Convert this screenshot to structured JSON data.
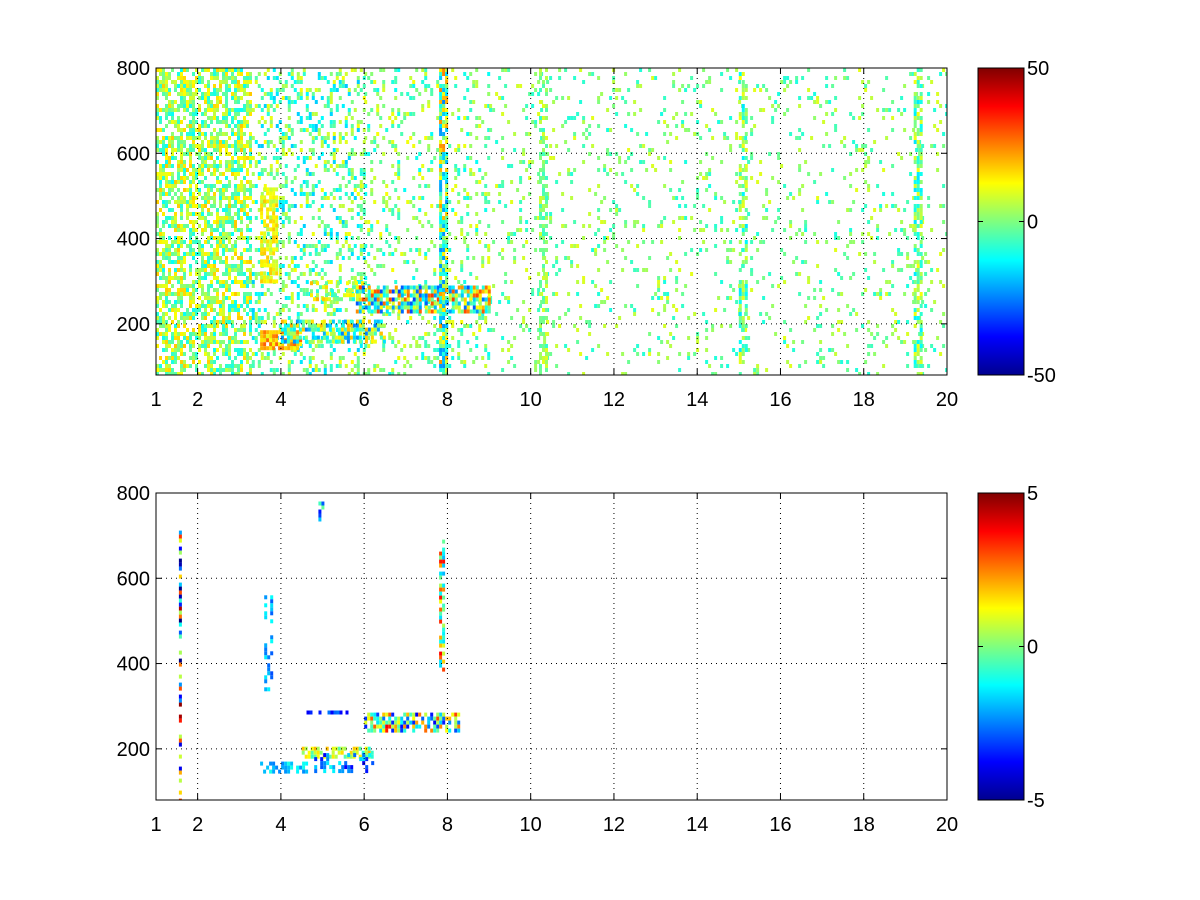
{
  "colormap": "jet",
  "chart_data": [
    {
      "type": "heatmap",
      "title": "",
      "xlabel": "",
      "ylabel": "",
      "xlim": [
        1,
        20
      ],
      "ylim": [
        80,
        800
      ],
      "xticks": [
        1,
        2,
        4,
        6,
        8,
        10,
        12,
        14,
        16,
        18,
        20
      ],
      "xtick_labels": [
        "1",
        "2",
        "4",
        "6",
        "8",
        "10",
        "12",
        "14",
        "16",
        "18",
        "20"
      ],
      "yticks": [
        200,
        400,
        600,
        800
      ],
      "ytick_labels": [
        "200",
        "400",
        "600",
        "800"
      ],
      "grid": true,
      "colorbar": {
        "range": [
          -50,
          50
        ],
        "tick_values": [
          -50,
          0,
          50
        ],
        "tick_labels": [
          "-50",
          "0",
          "50"
        ]
      },
      "features": [
        {
          "x": [
            1.0,
            3.3
          ],
          "y": [
            80,
            800
          ],
          "density": 0.6,
          "value": [
            -12,
            18
          ]
        },
        {
          "x": [
            3.3,
            6.0
          ],
          "y": [
            80,
            800
          ],
          "density": 0.3,
          "value": [
            -18,
            12
          ]
        },
        {
          "x": [
            6.0,
            9.0
          ],
          "y": [
            80,
            800
          ],
          "density": 0.18,
          "value": [
            -12,
            12
          ]
        },
        {
          "x": [
            9.0,
            20.0
          ],
          "y": [
            80,
            800
          ],
          "density": 0.1,
          "value": [
            -10,
            10
          ]
        },
        {
          "x": [
            3.5,
            3.9
          ],
          "y": [
            300,
            520
          ],
          "density": 0.7,
          "value": [
            5,
            18
          ]
        },
        {
          "x": [
            3.5,
            4.5
          ],
          "y": [
            140,
            185
          ],
          "density": 0.9,
          "value": [
            10,
            28
          ]
        },
        {
          "x": [
            4.0,
            6.5
          ],
          "y": [
            160,
            210
          ],
          "density": 0.7,
          "value": [
            -25,
            20
          ]
        },
        {
          "x": [
            4.7,
            6.0
          ],
          "y": [
            260,
            300
          ],
          "density": 0.55,
          "value": [
            -10,
            20
          ]
        },
        {
          "x": [
            5.8,
            9.0
          ],
          "y": [
            225,
            290
          ],
          "density": 0.8,
          "value": [
            -32,
            32
          ]
        },
        {
          "x": [
            7.8,
            8.0
          ],
          "y": [
            80,
            800
          ],
          "density": 0.8,
          "value": [
            -25,
            25
          ]
        },
        {
          "x": [
            10.2,
            10.4
          ],
          "y": [
            80,
            800
          ],
          "density": 0.45,
          "value": [
            -8,
            10
          ]
        },
        {
          "x": [
            15.0,
            15.2
          ],
          "y": [
            80,
            800
          ],
          "density": 0.55,
          "value": [
            -15,
            12
          ]
        },
        {
          "x": [
            19.2,
            19.4
          ],
          "y": [
            80,
            800
          ],
          "density": 0.6,
          "value": [
            -15,
            12
          ]
        }
      ]
    },
    {
      "type": "heatmap",
      "title": "",
      "xlabel": "",
      "ylabel": "",
      "xlim": [
        1,
        20
      ],
      "ylim": [
        80,
        800
      ],
      "xticks": [
        1,
        2,
        4,
        6,
        8,
        10,
        12,
        14,
        16,
        18,
        20
      ],
      "xtick_labels": [
        "1",
        "2",
        "4",
        "6",
        "8",
        "10",
        "12",
        "14",
        "16",
        "18",
        "20"
      ],
      "yticks": [
        200,
        400,
        600,
        800
      ],
      "ytick_labels": [
        "200",
        "400",
        "600",
        "800"
      ],
      "grid": true,
      "colorbar": {
        "range": [
          -5,
          5
        ],
        "tick_values": [
          -5,
          0,
          5
        ],
        "tick_labels": [
          "-5",
          "0",
          "5"
        ]
      },
      "features": [
        {
          "x": [
            1.55,
            1.6
          ],
          "y": [
            80,
            740
          ],
          "density": 0.5,
          "value": [
            -5,
            5
          ]
        },
        {
          "x": [
            3.6,
            3.75
          ],
          "y": [
            340,
            560
          ],
          "density": 0.3,
          "value": [
            -3,
            -1
          ]
        },
        {
          "x": [
            3.5,
            4.6
          ],
          "y": [
            150,
            170
          ],
          "density": 0.6,
          "value": [
            -2.5,
            -1
          ]
        },
        {
          "x": [
            4.5,
            6.2
          ],
          "y": [
            180,
            205
          ],
          "density": 0.6,
          "value": [
            -1,
            2
          ]
        },
        {
          "x": [
            4.8,
            6.2
          ],
          "y": [
            150,
            190
          ],
          "density": 0.4,
          "value": [
            -4,
            -1
          ]
        },
        {
          "x": [
            4.4,
            5.6
          ],
          "y": [
            282,
            290
          ],
          "density": 0.6,
          "value": [
            -4,
            -2
          ]
        },
        {
          "x": [
            6.0,
            8.3
          ],
          "y": [
            240,
            285
          ],
          "density": 0.7,
          "value": [
            -4,
            4
          ]
        },
        {
          "x": [
            7.8,
            7.9
          ],
          "y": [
            390,
            700
          ],
          "density": 0.6,
          "value": [
            -2,
            4
          ]
        },
        {
          "x": [
            4.9,
            5.0
          ],
          "y": [
            720,
            780
          ],
          "density": 0.6,
          "value": [
            -4,
            1
          ]
        }
      ]
    }
  ]
}
